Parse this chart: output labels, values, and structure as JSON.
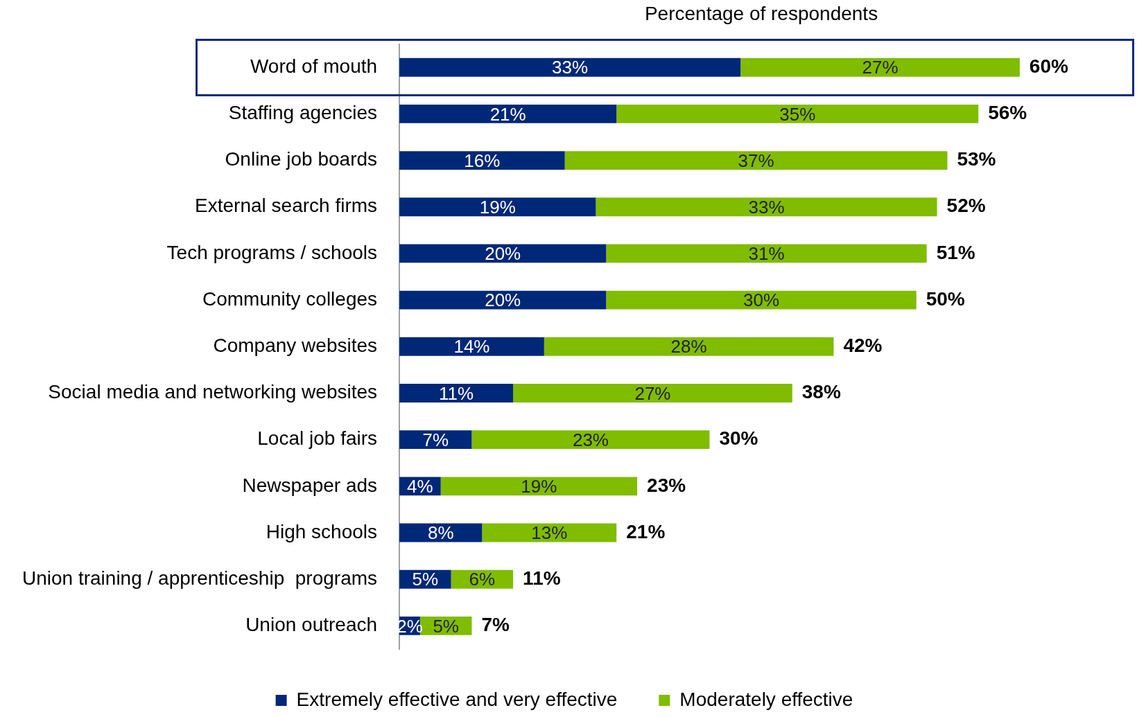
{
  "chart_data": {
    "type": "bar",
    "orientation": "horizontal",
    "stacked": true,
    "xlabel": "Percentage of respondents",
    "categories": [
      "Word of mouth",
      "Staffing agencies",
      "Online job boards",
      "External search firms",
      "Tech programs / schools",
      "Community colleges",
      "Company websites",
      "Social media and networking websites",
      "Local job fairs",
      "Newspaper ads",
      "High schools",
      "Union training / apprenticeship  programs",
      "Union outreach"
    ],
    "series": [
      {
        "name": "Extremely effective and very effective",
        "color": "#002878",
        "values": [
          33,
          21,
          16,
          19,
          20,
          20,
          14,
          11,
          7,
          4,
          8,
          5,
          2
        ],
        "value_labels": [
          "33%",
          "21%",
          "16%",
          "19%",
          "20%",
          "20%",
          "14%",
          "11%",
          "7%",
          "4%",
          "8%",
          "5%",
          "2%"
        ]
      },
      {
        "name": "Moderately effective",
        "color": "#80bc00",
        "values": [
          27,
          35,
          37,
          33,
          31,
          30,
          28,
          27,
          23,
          19,
          13,
          6,
          5
        ],
        "value_labels": [
          "27%",
          "35%",
          "37%",
          "33%",
          "31%",
          "30%",
          "28%",
          "27%",
          "23%",
          "19%",
          "13%",
          "6%",
          "5%"
        ]
      }
    ],
    "totals": [
      "60%",
      "56%",
      "53%",
      "52%",
      "51%",
      "50%",
      "42%",
      "38%",
      "30%",
      "23%",
      "21%",
      "11%",
      "7%"
    ],
    "legend": "bottom",
    "grid": false
  }
}
